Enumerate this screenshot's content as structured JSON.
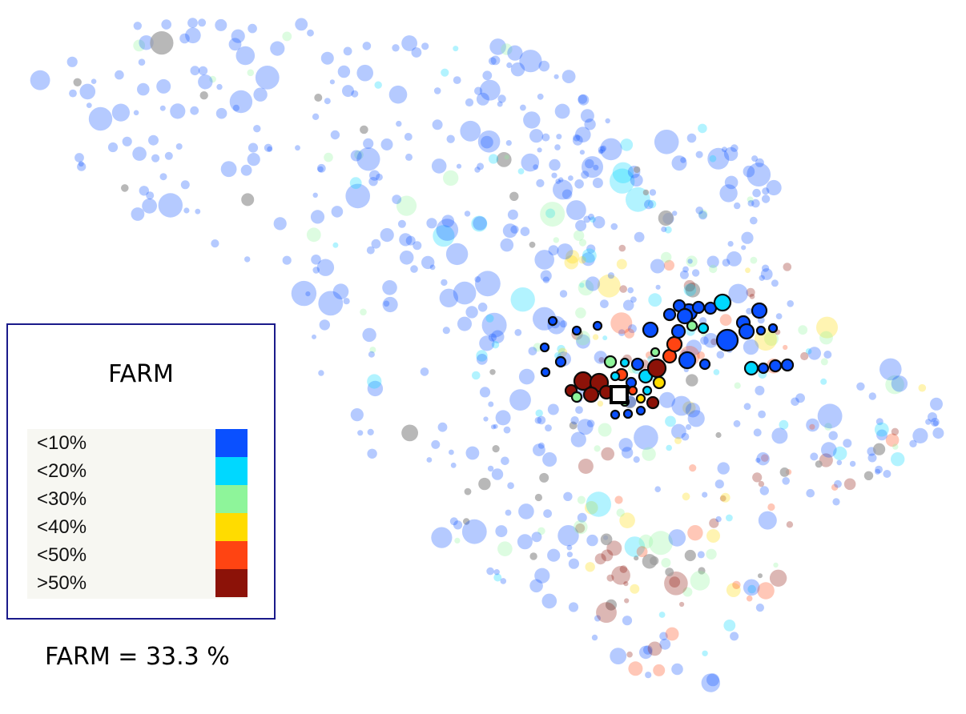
{
  "legend": {
    "title": "FARM",
    "items": [
      {
        "label": "<10%",
        "color": "#0a50ff"
      },
      {
        "label": "<20%",
        "color": "#00d8ff"
      },
      {
        "label": "<30%",
        "color": "#8ef59a"
      },
      {
        "label": "<40%",
        "color": "#ffdc00"
      },
      {
        "label": "<50%",
        "color": "#ff4412"
      },
      {
        "label": ">50%",
        "color": "#8c1208"
      }
    ]
  },
  "summary": "FARM = 33.3 %",
  "colors": {
    "missing": "#9a9a9a",
    "selected_marker": "#ffffff"
  }
}
